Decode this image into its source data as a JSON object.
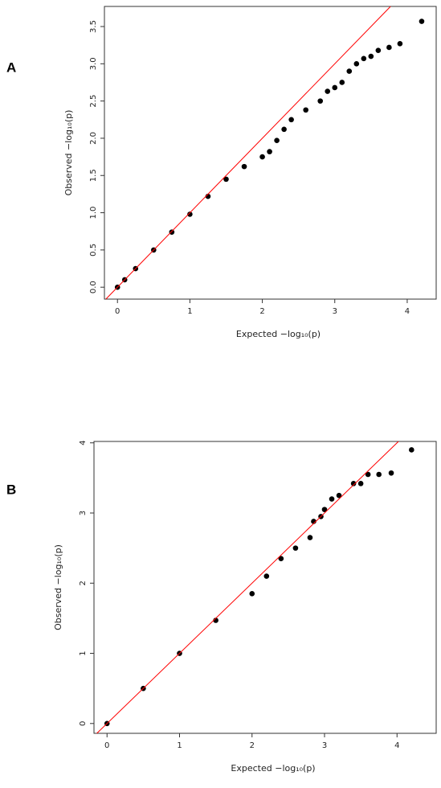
{
  "chart_data": [
    {
      "type": "scatter",
      "panel_label": "A",
      "x_label": "Expected −log₁₀(p)",
      "y_label": "Observed −log₁₀(p)",
      "x": [
        0,
        0.1,
        0.25,
        0.5,
        0.75,
        1,
        1.25,
        1.5,
        1.75,
        2,
        2.1,
        2.2,
        2.3,
        2.4,
        2.6,
        2.8,
        2.9,
        3.0,
        3.1,
        3.2,
        3.3,
        3.4,
        3.5,
        3.6,
        3.75,
        3.9,
        4.2
      ],
      "values": [
        0,
        0.1,
        0.25,
        0.5,
        0.74,
        0.98,
        1.22,
        1.45,
        1.62,
        1.75,
        1.82,
        1.97,
        2.12,
        2.25,
        2.38,
        2.5,
        2.63,
        2.68,
        2.75,
        2.9,
        3.0,
        3.07,
        3.1,
        3.18,
        3.22,
        3.27,
        3.57
      ],
      "color": "#000000",
      "reference_line_color": "#ff0000",
      "xlim": [
        -0.18,
        4.4
      ],
      "ylim": [
        -0.16,
        3.77
      ],
      "xticks": [
        0,
        1,
        2,
        3,
        4
      ],
      "yticks": [
        {
          "value": 0,
          "label": "0.0"
        },
        0.5,
        {
          "value": 1,
          "label": "1.0"
        },
        1.5,
        {
          "value": 2,
          "label": "2.0"
        },
        2.5,
        {
          "value": 3,
          "label": "3.0"
        },
        3.5
      ]
    },
    {
      "type": "scatter",
      "panel_label": "B",
      "x_label": "Expected −log₁₀(p)",
      "y_label": "Observed −log₁₀(p)",
      "x": [
        0,
        0.5,
        1,
        1.5,
        2,
        2.2,
        2.4,
        2.6,
        2.8,
        2.85,
        2.95,
        3.0,
        3.1,
        3.2,
        3.4,
        3.5,
        3.6,
        3.75,
        3.92,
        4.2
      ],
      "values": [
        0,
        0.5,
        1.0,
        1.47,
        1.85,
        2.1,
        2.35,
        2.5,
        2.65,
        2.88,
        2.95,
        3.05,
        3.2,
        3.25,
        3.42,
        3.42,
        3.55,
        3.55,
        3.57,
        3.9
      ],
      "color": "#000000",
      "reference_line_color": "#ff0000",
      "xlim": [
        -0.18,
        4.54
      ],
      "ylim": [
        -0.14,
        4.02
      ],
      "xticks": [
        0,
        1,
        2,
        3,
        4
      ],
      "yticks": [
        0,
        1,
        2,
        3,
        4
      ]
    }
  ]
}
